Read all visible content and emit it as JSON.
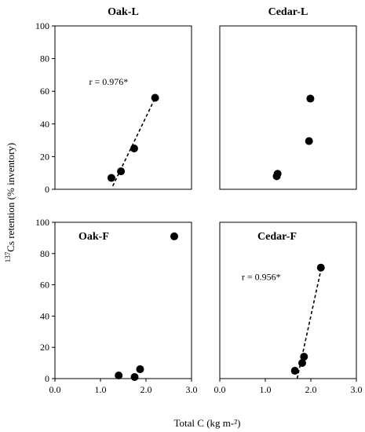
{
  "ylabel_sup": "137",
  "ylabel_rest": "Cs retention (% inventory)",
  "xlabel": "Total C (kg m-²)",
  "chart_data": [
    {
      "type": "scatter",
      "title": "Oak-L",
      "title_position": "outside-top",
      "xlim": [
        0,
        3
      ],
      "ylim": [
        0,
        100
      ],
      "xticks": [
        "0.0",
        "1.0",
        "2.0",
        "3.0"
      ],
      "yticks": [
        "0",
        "20",
        "40",
        "60",
        "80",
        "100"
      ],
      "show_x_tick_labels": false,
      "show_y_tick_labels": true,
      "points": [
        {
          "x": 1.24,
          "y": 7
        },
        {
          "x": 1.45,
          "y": 11
        },
        {
          "x": 1.74,
          "y": 25
        },
        {
          "x": 2.2,
          "y": 56
        }
      ],
      "fit_line": {
        "x": [
          1.27,
          2.22
        ],
        "y": [
          2,
          57
        ],
        "style": "dashed"
      },
      "annotation": {
        "text": "r = 0.976*",
        "x": 0.75,
        "y": 64
      }
    },
    {
      "type": "scatter",
      "title": "Cedar-L",
      "title_position": "outside-top",
      "xlim": [
        0,
        3
      ],
      "ylim": [
        0,
        100
      ],
      "xticks": [
        "0.0",
        "1.0",
        "2.0",
        "3.0"
      ],
      "yticks": [
        "0",
        "20",
        "40",
        "60",
        "80",
        "100"
      ],
      "show_x_tick_labels": false,
      "show_y_tick_labels": false,
      "points": [
        {
          "x": 1.25,
          "y": 8
        },
        {
          "x": 1.27,
          "y": 9.5
        },
        {
          "x": 1.96,
          "y": 29.5
        },
        {
          "x": 1.99,
          "y": 55.5
        }
      ]
    },
    {
      "type": "scatter",
      "title": "Oak-F",
      "title_position": "inside-top-left",
      "xlim": [
        0,
        3
      ],
      "ylim": [
        0,
        100
      ],
      "xticks": [
        "0.0",
        "1.0",
        "2.0",
        "3.0"
      ],
      "yticks": [
        "0",
        "20",
        "40",
        "60",
        "80",
        "100"
      ],
      "show_x_tick_labels": true,
      "show_y_tick_labels": true,
      "points": [
        {
          "x": 1.4,
          "y": 2
        },
        {
          "x": 1.75,
          "y": 1
        },
        {
          "x": 1.87,
          "y": 6
        },
        {
          "x": 2.62,
          "y": 91
        }
      ]
    },
    {
      "type": "scatter",
      "title": "Cedar-F",
      "title_position": "inside-top-right",
      "xlim": [
        0,
        3
      ],
      "ylim": [
        0,
        100
      ],
      "xticks": [
        "0.0",
        "1.0",
        "2.0",
        "3.0"
      ],
      "yticks": [
        "0",
        "20",
        "40",
        "60",
        "80",
        "100"
      ],
      "show_x_tick_labels": true,
      "show_y_tick_labels": false,
      "points": [
        {
          "x": 1.65,
          "y": 5
        },
        {
          "x": 1.81,
          "y": 10
        },
        {
          "x": 1.85,
          "y": 14
        },
        {
          "x": 2.22,
          "y": 71
        }
      ],
      "fit_line": {
        "x": [
          1.7,
          2.24
        ],
        "y": [
          0,
          72
        ],
        "style": "dashed"
      },
      "annotation": {
        "text": "r = 0.956*",
        "x": 0.48,
        "y": 63
      }
    }
  ]
}
